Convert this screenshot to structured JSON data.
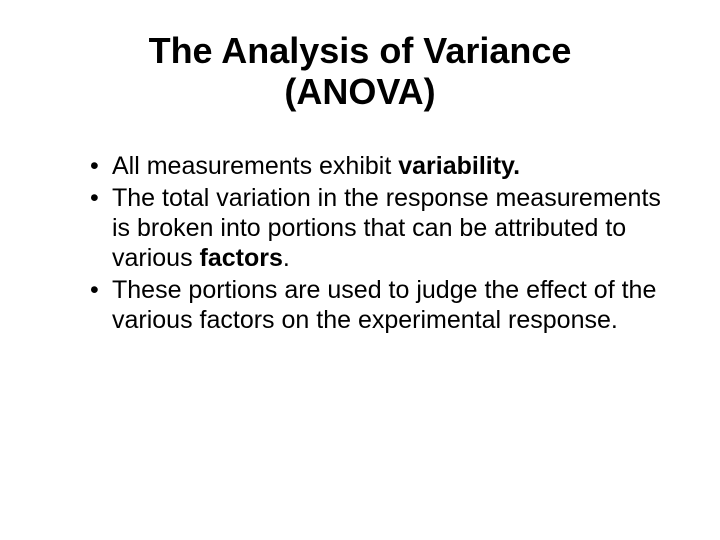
{
  "title_line1": "The Analysis of Variance",
  "title_line2": "(ANOVA)",
  "bullets": [
    {
      "pre": "All measurements exhibit ",
      "bold": "variability.",
      "post": ""
    },
    {
      "pre": "The total variation in the response measurements is broken into portions that can be attributed to various ",
      "bold": "factors",
      "post": "."
    },
    {
      "pre": "These portions are used to judge the effect of the various factors on the experimental response.",
      "bold": "",
      "post": ""
    }
  ],
  "colors": {
    "background": "#ffffff",
    "text": "#000000"
  },
  "typography": {
    "title_fontsize": 36,
    "body_fontsize": 25,
    "font_family": "Arial"
  }
}
